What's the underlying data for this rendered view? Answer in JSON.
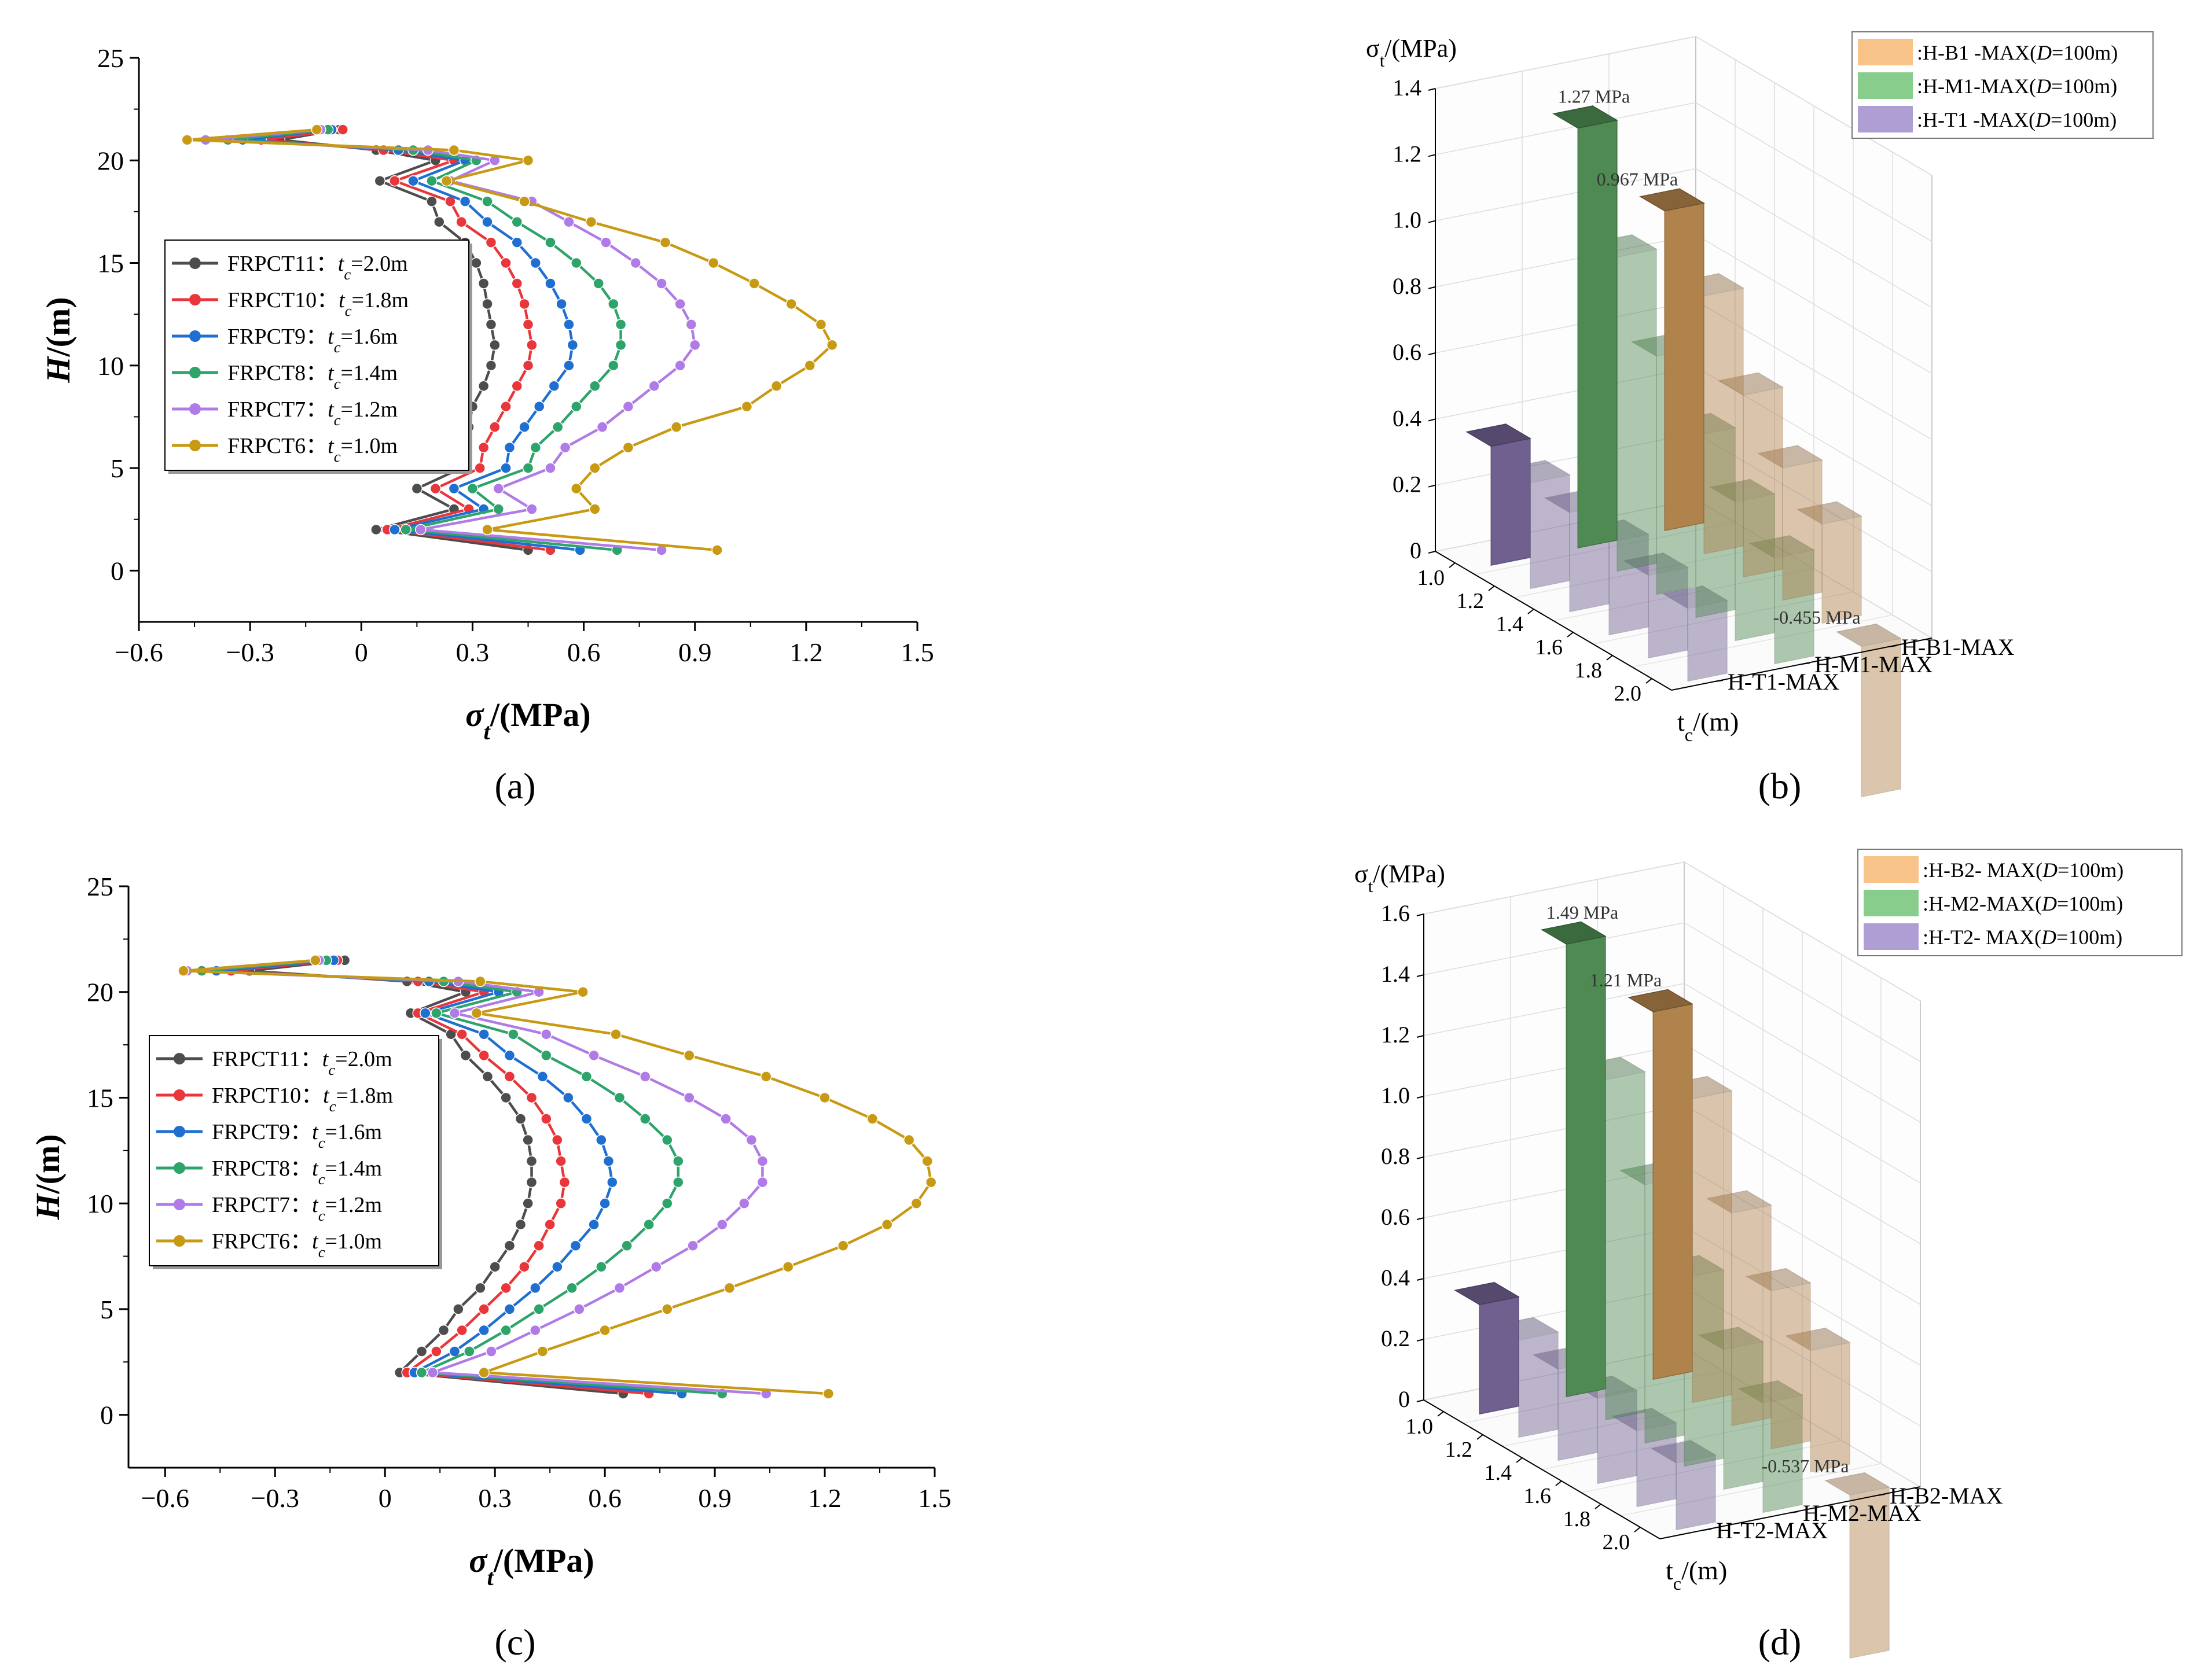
{
  "figure": {
    "panel_labels": [
      "(a)",
      "(b)",
      "(c)",
      "(d)"
    ]
  },
  "chart_data": [
    {
      "id": "a",
      "type": "line",
      "xlabel": "σt/(MPa)",
      "ylabel": "H/(m)",
      "xlim": [
        -0.6,
        1.5
      ],
      "ylim": [
        -2.5,
        25
      ],
      "xticks": [
        "−0.6",
        "−0.3",
        "0",
        "0.3",
        "0.6",
        "0.9",
        "1.2",
        "1.5"
      ],
      "yticks": [
        "0",
        "5",
        "10",
        "15",
        "20",
        "25"
      ],
      "y": [
        1,
        2,
        3,
        4,
        5,
        6,
        7,
        8,
        9,
        10,
        11,
        12,
        13,
        14,
        15,
        16,
        17,
        18,
        19,
        20,
        20.5,
        21,
        21.5
      ],
      "series": [
        {
          "name": "FRPCT11",
          "label": "FRPCT11：tc=2.0m",
          "color": "#4d4d4d",
          "x": [
            0.45,
            0.04,
            0.25,
            0.15,
            0.27,
            0.28,
            0.29,
            0.3,
            0.33,
            0.35,
            0.36,
            0.35,
            0.34,
            0.33,
            0.31,
            0.28,
            0.21,
            0.19,
            0.05,
            0.2,
            0.04,
            -0.22,
            -0.06
          ]
        },
        {
          "name": "FRPCT10",
          "label": "FRPCT10：tc=1.8m",
          "color": "#e8363b",
          "x": [
            0.51,
            0.07,
            0.29,
            0.2,
            0.32,
            0.33,
            0.36,
            0.39,
            0.42,
            0.45,
            0.46,
            0.45,
            0.44,
            0.42,
            0.39,
            0.35,
            0.27,
            0.24,
            0.09,
            0.25,
            0.06,
            -0.27,
            -0.05
          ]
        },
        {
          "name": "FRPCT9",
          "label": "FRPCT9：tc=1.6m",
          "color": "#1f6fd1",
          "x": [
            0.59,
            0.09,
            0.33,
            0.25,
            0.39,
            0.4,
            0.44,
            0.48,
            0.52,
            0.56,
            0.57,
            0.56,
            0.54,
            0.51,
            0.47,
            0.42,
            0.34,
            0.28,
            0.14,
            0.28,
            0.1,
            -0.32,
            -0.08
          ]
        },
        {
          "name": "FRPCT8",
          "label": "FRPCT8：tc=1.4m",
          "color": "#2ea36a",
          "x": [
            0.69,
            0.12,
            0.37,
            0.3,
            0.45,
            0.47,
            0.53,
            0.58,
            0.63,
            0.68,
            0.7,
            0.7,
            0.68,
            0.64,
            0.58,
            0.51,
            0.42,
            0.34,
            0.19,
            0.31,
            0.14,
            -0.36,
            -0.09
          ]
        },
        {
          "name": "FRPCT7",
          "label": "FRPCT7：tc=1.2m",
          "color": "#b07be6",
          "x": [
            0.81,
            0.16,
            0.46,
            0.37,
            0.51,
            0.55,
            0.65,
            0.72,
            0.79,
            0.86,
            0.9,
            0.89,
            0.86,
            0.81,
            0.74,
            0.66,
            0.56,
            0.46,
            0.24,
            0.36,
            0.18,
            -0.42,
            -0.11
          ]
        },
        {
          "name": "FRPCT6",
          "label": "FRPCT6：tc=1.0m",
          "color": "#c89a14",
          "x": [
            0.96,
            0.34,
            0.63,
            0.58,
            0.63,
            0.72,
            0.85,
            1.04,
            1.12,
            1.21,
            1.27,
            1.24,
            1.16,
            1.06,
            0.95,
            0.82,
            0.62,
            0.44,
            0.23,
            0.45,
            0.25,
            -0.47,
            -0.12
          ]
        }
      ]
    },
    {
      "id": "b",
      "type": "bar",
      "zlabel": "σt/(MPa)",
      "xlabel": "tc/(m)",
      "categories": [
        "1.0",
        "1.2",
        "1.4",
        "1.6",
        "1.8",
        "2.0"
      ],
      "rows": [
        "H-T1-MAX",
        "H-M1-MAX",
        "H-B1-MAX"
      ],
      "zlim": [
        0,
        1.4
      ],
      "zticks": [
        "0",
        "0.2",
        "0.4",
        "0.6",
        "0.8",
        "1.0",
        "1.2",
        "1.4"
      ],
      "legend": [
        ":H-B1 -MAX(D=100m)",
        ":H-M1-MAX(D=100m)",
        ":H-T1 -MAX(D=100m)"
      ],
      "annotations": [
        "0.967 MPa",
        "1.27 MPa",
        "-0.455 MPa"
      ],
      "series": [
        {
          "name": "H-B1-MAX",
          "color": "#f5b46a",
          "values": [
            0.967,
            0.78,
            0.55,
            0.4,
            0.3,
            -0.455
          ]
        },
        {
          "name": "H-M1-MAX",
          "color": "#6cc070",
          "values": [
            1.27,
            0.95,
            0.72,
            0.55,
            0.42,
            0.32
          ]
        },
        {
          "name": "H-T1-MAX",
          "color": "#9a86c8",
          "values": [
            0.36,
            0.32,
            0.3,
            0.28,
            0.25,
            0.22
          ]
        }
      ]
    },
    {
      "id": "c",
      "type": "line",
      "xlabel": "σt/(MPa)",
      "ylabel": "H/(m)",
      "xlim": [
        -0.7,
        1.5
      ],
      "ylim": [
        -2.5,
        25
      ],
      "xticks": [
        "−0.6",
        "−0.3",
        "0",
        "0.3",
        "0.6",
        "0.9",
        "1.2",
        "1.5"
      ],
      "yticks": [
        "0",
        "5",
        "10",
        "15",
        "20",
        "25"
      ],
      "y": [
        1,
        2,
        3,
        4,
        5,
        6,
        7,
        8,
        9,
        10,
        11,
        12,
        13,
        14,
        15,
        16,
        17,
        18,
        19,
        20,
        20.5,
        21,
        21.5
      ],
      "series": [
        {
          "name": "FRPCT11",
          "label": "FRPCT11：tc=2.0m",
          "color": "#4d4d4d",
          "x": [
            0.65,
            0.04,
            0.1,
            0.16,
            0.2,
            0.26,
            0.3,
            0.34,
            0.37,
            0.39,
            0.4,
            0.4,
            0.39,
            0.37,
            0.33,
            0.28,
            0.22,
            0.18,
            0.07,
            0.22,
            0.06,
            -0.37,
            -0.11
          ]
        },
        {
          "name": "FRPCT10",
          "label": "FRPCT10：tc=1.8m",
          "color": "#e8363b",
          "x": [
            0.72,
            0.06,
            0.14,
            0.21,
            0.27,
            0.33,
            0.38,
            0.42,
            0.45,
            0.48,
            0.49,
            0.48,
            0.47,
            0.44,
            0.4,
            0.34,
            0.27,
            0.21,
            0.09,
            0.27,
            0.09,
            -0.42,
            -0.13
          ]
        },
        {
          "name": "FRPCT9",
          "label": "FRPCT9：tc=1.6m",
          "color": "#1f6fd1",
          "x": [
            0.81,
            0.08,
            0.19,
            0.27,
            0.34,
            0.41,
            0.47,
            0.52,
            0.57,
            0.6,
            0.62,
            0.61,
            0.59,
            0.55,
            0.5,
            0.43,
            0.34,
            0.27,
            0.11,
            0.31,
            0.12,
            -0.46,
            -0.14
          ]
        },
        {
          "name": "FRPCT8",
          "label": "FRPCT8：tc=1.4m",
          "color": "#2ea36a",
          "x": [
            0.92,
            0.1,
            0.23,
            0.33,
            0.42,
            0.51,
            0.59,
            0.66,
            0.72,
            0.77,
            0.8,
            0.8,
            0.77,
            0.71,
            0.64,
            0.55,
            0.44,
            0.35,
            0.14,
            0.36,
            0.16,
            -0.5,
            -0.16
          ]
        },
        {
          "name": "FRPCT7",
          "label": "FRPCT7：tc=1.2m",
          "color": "#b07be6",
          "x": [
            1.04,
            0.13,
            0.29,
            0.41,
            0.53,
            0.64,
            0.74,
            0.84,
            0.92,
            0.98,
            1.03,
            1.03,
            1.0,
            0.93,
            0.83,
            0.71,
            0.57,
            0.44,
            0.19,
            0.42,
            0.2,
            -0.54,
            -0.18
          ]
        },
        {
          "name": "FRPCT6",
          "label": "FRPCT6：tc=1.0m",
          "color": "#c89a14",
          "x": [
            1.21,
            0.27,
            0.43,
            0.6,
            0.77,
            0.94,
            1.1,
            1.25,
            1.37,
            1.45,
            1.49,
            1.48,
            1.43,
            1.33,
            1.2,
            1.04,
            0.83,
            0.63,
            0.25,
            0.54,
            0.26,
            -0.55,
            -0.19
          ]
        }
      ]
    },
    {
      "id": "d",
      "type": "bar",
      "zlabel": "σt/(MPa)",
      "xlabel": "tc/(m)",
      "categories": [
        "1.0",
        "1.2",
        "1.4",
        "1.6",
        "1.8",
        "2.0"
      ],
      "rows": [
        "H-T2-MAX",
        "H-M2-MAX",
        "H-B2-MAX"
      ],
      "zlim": [
        0,
        1.6
      ],
      "zticks": [
        "0",
        "0.2",
        "0.4",
        "0.6",
        "0.8",
        "1.0",
        "1.2",
        "1.4",
        "1.6"
      ],
      "legend": [
        ":H-B2- MAX(D=100m)",
        ":H-M2-MAX(D=100m)",
        ":H-T2- MAX(D=100m)"
      ],
      "annotations": [
        "1.21 MPa",
        "1.49 MPa",
        "-0.537 MPa"
      ],
      "series": [
        {
          "name": "H-B2-MAX",
          "color": "#f5b46a",
          "values": [
            1.21,
            1.0,
            0.7,
            0.52,
            0.4,
            -0.537
          ]
        },
        {
          "name": "H-M2-MAX",
          "color": "#6cc070",
          "values": [
            1.49,
            1.12,
            0.85,
            0.62,
            0.46,
            0.36
          ]
        },
        {
          "name": "H-T2-MAX",
          "color": "#9a86c8",
          "values": [
            0.36,
            0.32,
            0.3,
            0.28,
            0.25,
            0.22
          ]
        }
      ]
    }
  ]
}
